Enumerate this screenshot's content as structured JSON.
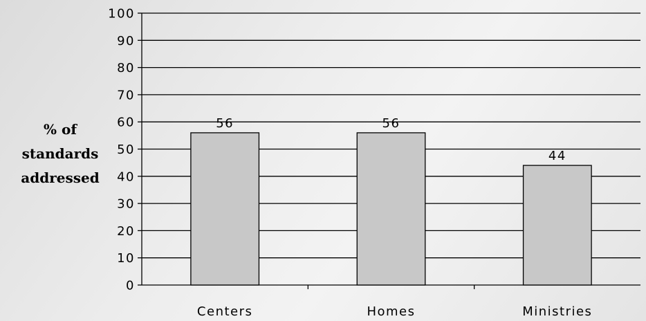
{
  "chart_data": {
    "type": "bar",
    "title": "",
    "xlabel": "",
    "ylabel_lines": [
      "% of",
      "standards",
      "addressed"
    ],
    "categories": [
      "Centers",
      "Homes",
      "Ministries"
    ],
    "series": [
      {
        "values": [
          56,
          56,
          44
        ]
      }
    ],
    "data_labels": [
      "56",
      "56",
      "44"
    ],
    "ylim": [
      0,
      100
    ],
    "yticks": [
      0,
      10,
      20,
      30,
      40,
      50,
      60,
      70,
      80,
      90,
      100
    ],
    "grid": true,
    "legend": "none",
    "colors": {
      "bar_fill": "#c8c8c8",
      "bar_stroke": "#000000",
      "grid": "#000000",
      "text": "#000000"
    }
  }
}
